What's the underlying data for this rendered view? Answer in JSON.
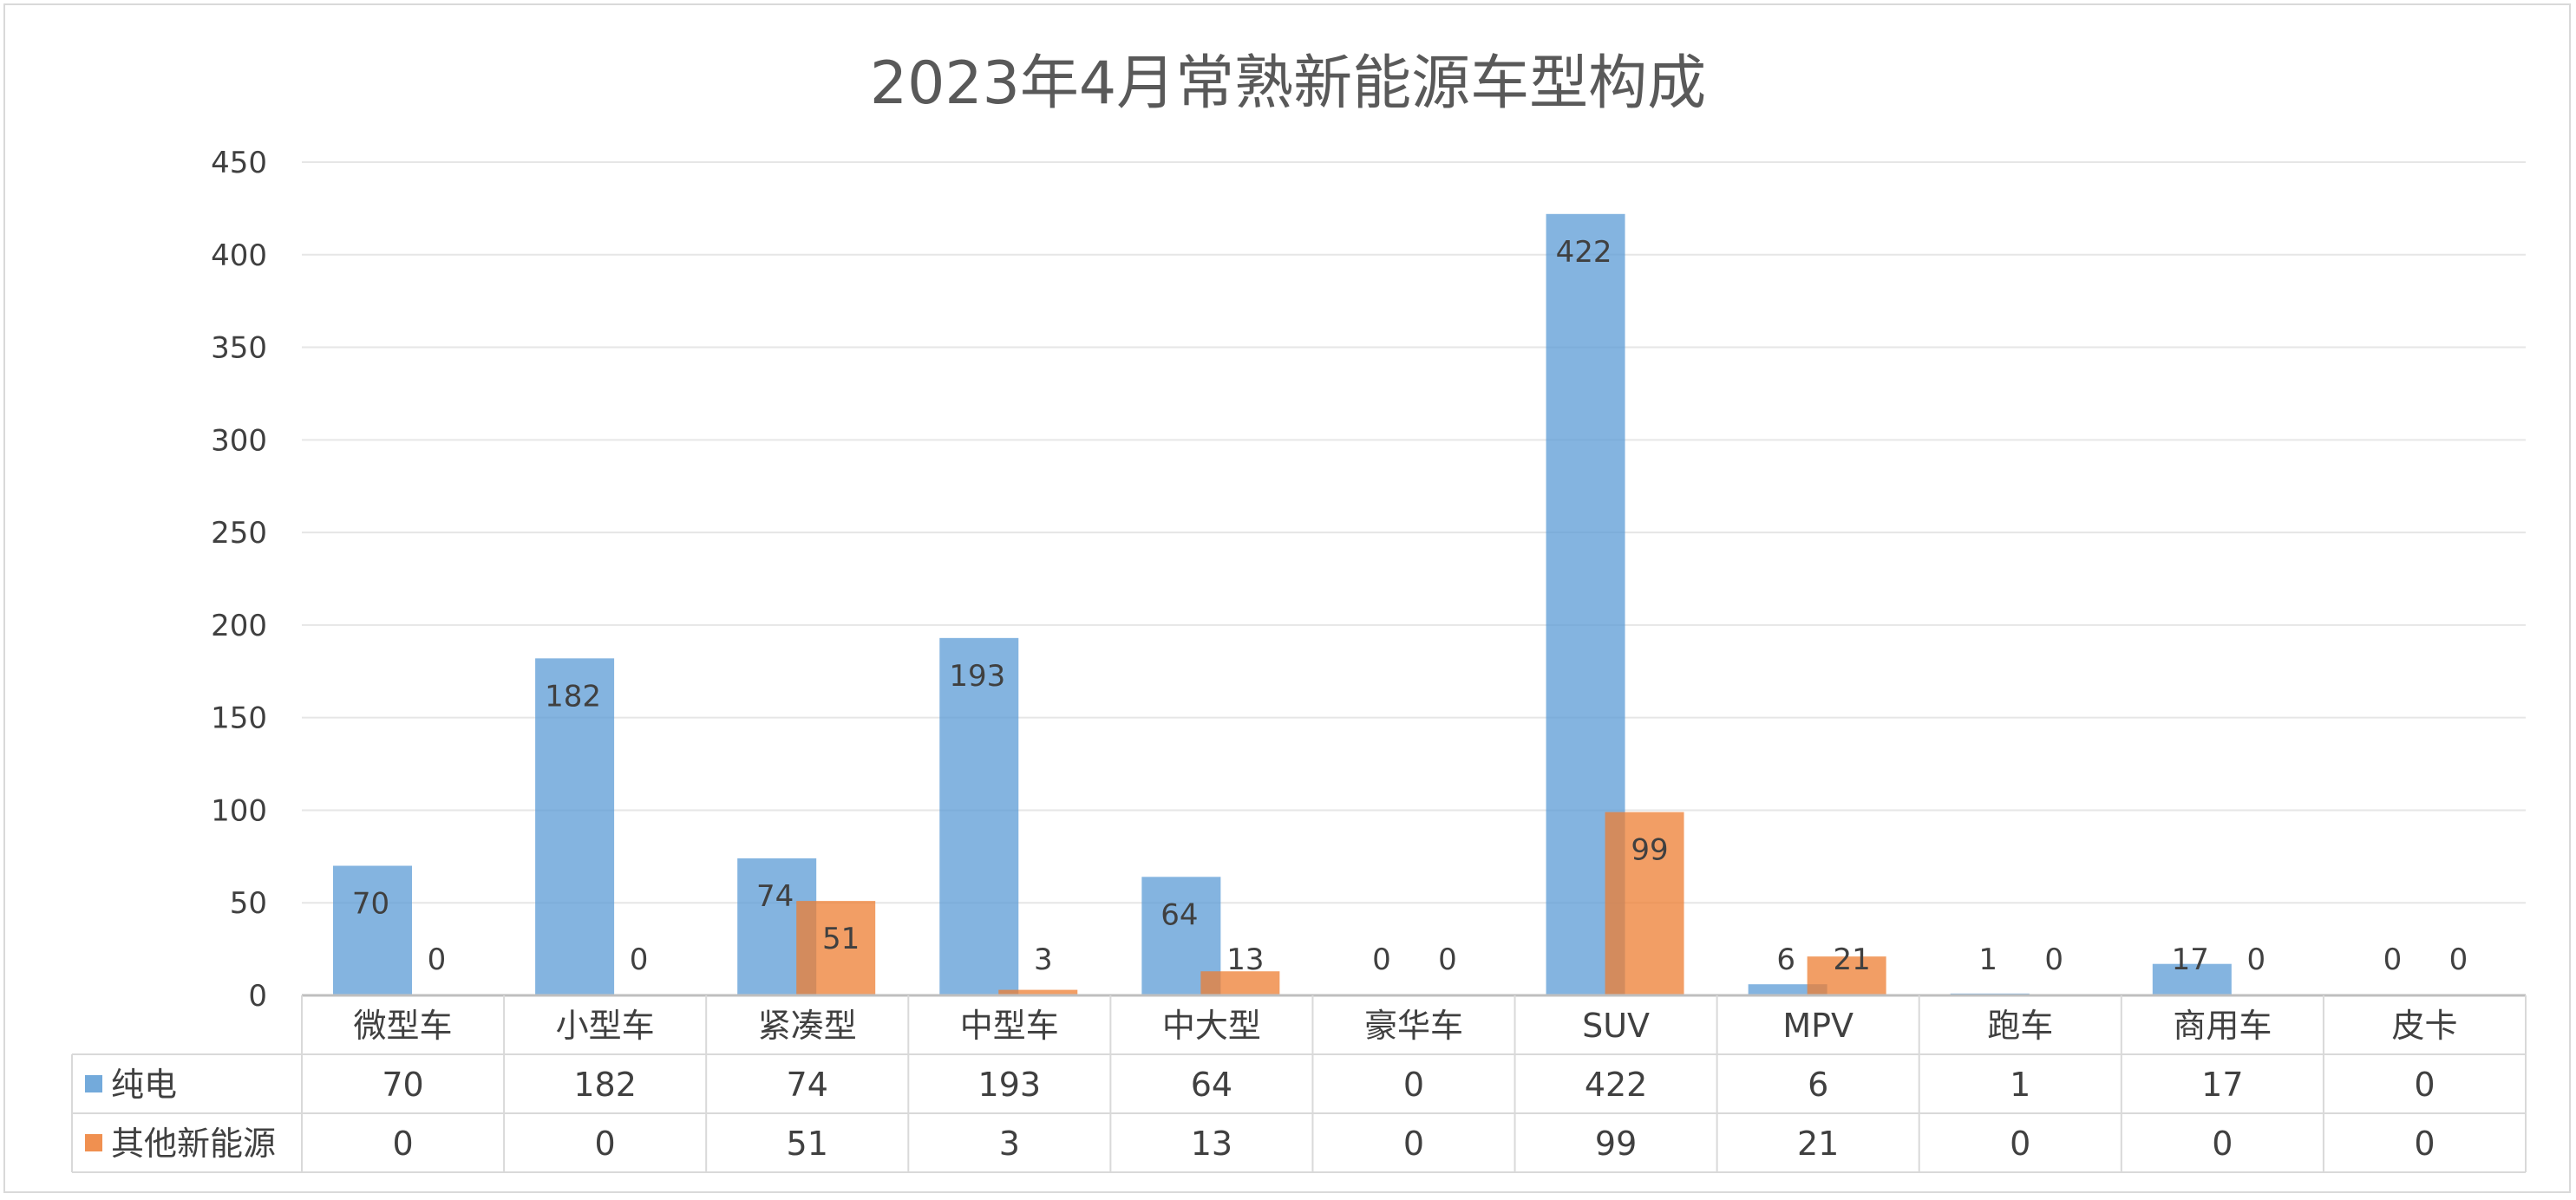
{
  "chart_data": {
    "type": "bar",
    "title": "2023年4月常熟新能源车型构成",
    "categories": [
      "微型车",
      "小型车",
      "紧凑型",
      "中型车",
      "中大型",
      "豪华车",
      "SUV",
      "MPV",
      "跑车",
      "商用车",
      "皮卡"
    ],
    "series": [
      {
        "name": "纯电",
        "color": "#5b9bd5",
        "values": [
          70,
          182,
          74,
          193,
          64,
          0,
          422,
          6,
          1,
          17,
          0
        ]
      },
      {
        "name": "其他新能源",
        "color": "#ed7d31",
        "values": [
          0,
          0,
          51,
          3,
          13,
          0,
          99,
          21,
          0,
          0,
          0
        ]
      }
    ],
    "ylim": [
      0,
      450
    ],
    "yticks": [
      0,
      50,
      100,
      150,
      200,
      250,
      300,
      350,
      400,
      450
    ],
    "grid": true,
    "legend": "data-table",
    "data_table": true
  }
}
